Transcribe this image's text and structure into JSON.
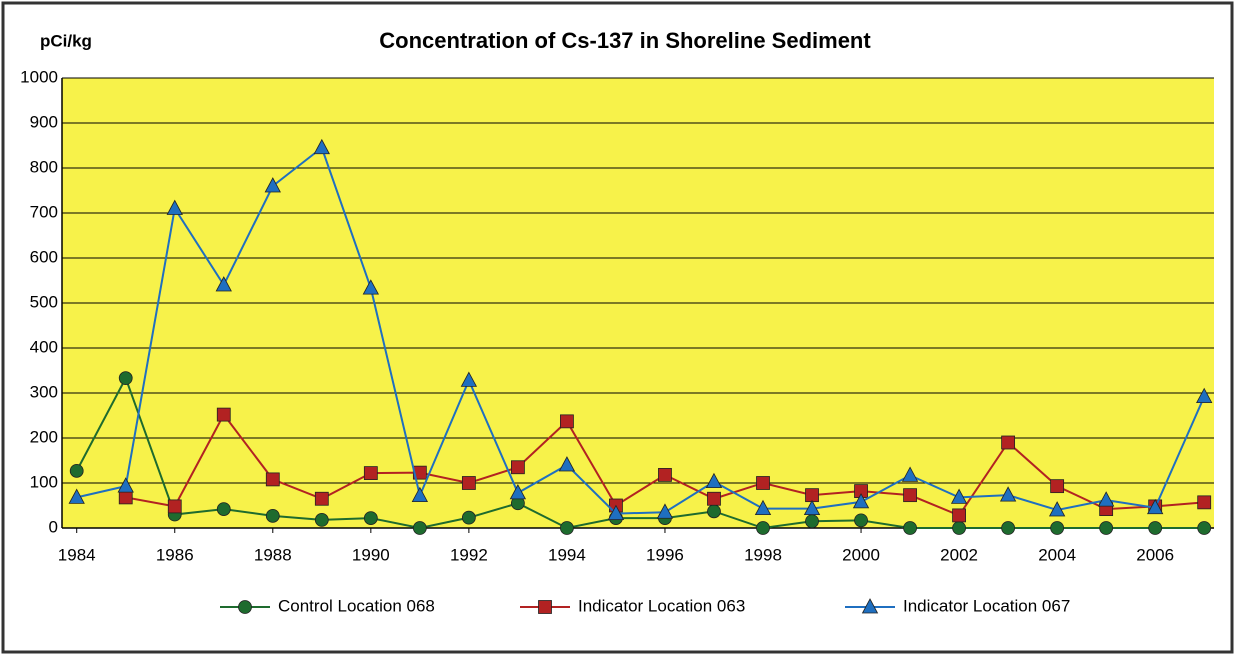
{
  "chart_data": {
    "type": "line",
    "title": "Concentration of Cs-137 in Shoreline Sediment",
    "y_label": "pCi/kg",
    "x": [
      1984,
      1985,
      1986,
      1987,
      1988,
      1989,
      1990,
      1991,
      1992,
      1993,
      1994,
      1995,
      1996,
      1997,
      1998,
      1999,
      2000,
      2001,
      2002,
      2003,
      2004,
      2005,
      2006,
      2007
    ],
    "series": [
      {
        "name": "Control Location 068",
        "color": "#1e6b2e",
        "marker": "circle",
        "values": [
          127,
          333,
          30,
          42,
          27,
          18,
          22,
          0,
          23,
          55,
          0,
          22,
          22,
          37,
          0,
          15,
          17,
          0,
          0,
          0,
          0,
          0,
          0,
          0
        ]
      },
      {
        "name": "Indicator Location 063",
        "color": "#b22222",
        "marker": "square",
        "values": [
          null,
          68,
          48,
          252,
          108,
          65,
          122,
          123,
          100,
          135,
          237,
          50,
          118,
          65,
          100,
          73,
          82,
          73,
          28,
          190,
          93,
          42,
          48,
          57
        ]
      },
      {
        "name": "Indicator Location 067",
        "color": "#1f6fc0",
        "marker": "triangle",
        "values": [
          68,
          93,
          710,
          540,
          760,
          845,
          533,
          72,
          328,
          78,
          140,
          32,
          35,
          103,
          43,
          43,
          58,
          117,
          68,
          73,
          40,
          62,
          45,
          292
        ]
      }
    ],
    "xlim": [
      1983.7,
      2007.2
    ],
    "xticks": [
      1984,
      1986,
      1988,
      1990,
      1992,
      1994,
      1996,
      1998,
      2000,
      2002,
      2004,
      2006
    ],
    "ylim": [
      0,
      1000
    ],
    "yticks": [
      0,
      100,
      200,
      300,
      400,
      500,
      600,
      700,
      800,
      900,
      1000
    ],
    "grid": true,
    "plot_background": "#f7f24a",
    "legend": "bottom"
  }
}
